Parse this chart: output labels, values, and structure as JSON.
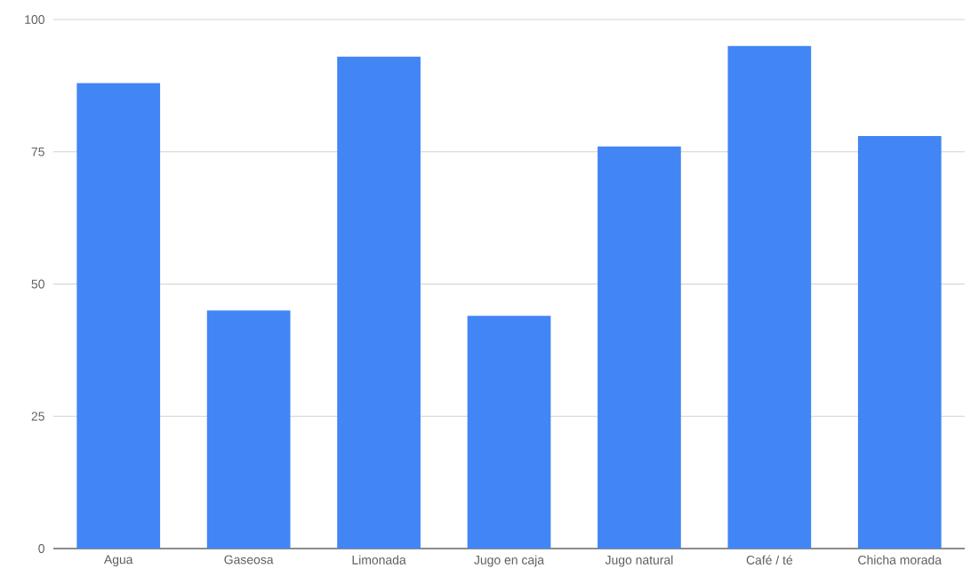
{
  "chart_data": {
    "type": "bar",
    "categories": [
      "Agua",
      "Gaseosa",
      "Limonada",
      "Jugo en caja",
      "Jugo natural",
      "Café / té",
      "Chicha morada"
    ],
    "values": [
      88,
      45,
      93,
      44,
      76,
      95,
      78
    ],
    "color": "#4285f4",
    "ylim": [
      0,
      100
    ],
    "yticks": [
      0,
      25,
      50,
      75,
      100
    ],
    "grid": "y"
  }
}
